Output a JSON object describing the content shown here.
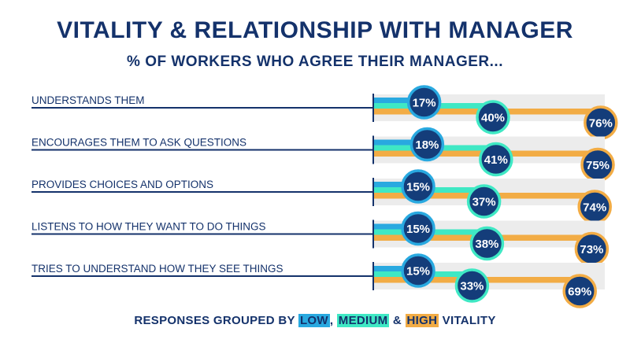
{
  "chart_data": {
    "type": "bar",
    "title": "VITALITY & RELATIONSHIP WITH MANAGER",
    "subtitle": "% OF WORKERS WHO AGREE THEIR MANAGER...",
    "categories": [
      "UNDERSTANDS THEM",
      "ENCOURAGES THEM TO ASK QUESTIONS",
      "PROVIDES CHOICES AND OPTIONS",
      "LISTENS TO HOW THEY WANT TO DO THINGS",
      "TRIES TO UNDERSTAND HOW THEY SEE THINGS"
    ],
    "series": [
      {
        "name": "LOW",
        "color": "#29a9e0",
        "values": [
          17,
          18,
          15,
          15,
          15
        ]
      },
      {
        "name": "MEDIUM",
        "color": "#3fe8c4",
        "values": [
          40,
          41,
          37,
          38,
          33
        ]
      },
      {
        "name": "HIGH",
        "color": "#f2ac45",
        "values": [
          76,
          75,
          74,
          73,
          69
        ]
      }
    ],
    "value_suffix": "%",
    "xlim": [
      0,
      100
    ]
  },
  "footer": {
    "prefix": "RESPONSES GROUPED BY ",
    "low": "LOW",
    "sep1": ", ",
    "medium": "MEDIUM",
    "sep2": " & ",
    "high": "HIGH",
    "suffix": " VITALITY"
  },
  "colors": {
    "navy": "#14326b",
    "track": "#ececec",
    "circle_fill": "#143d7a"
  }
}
